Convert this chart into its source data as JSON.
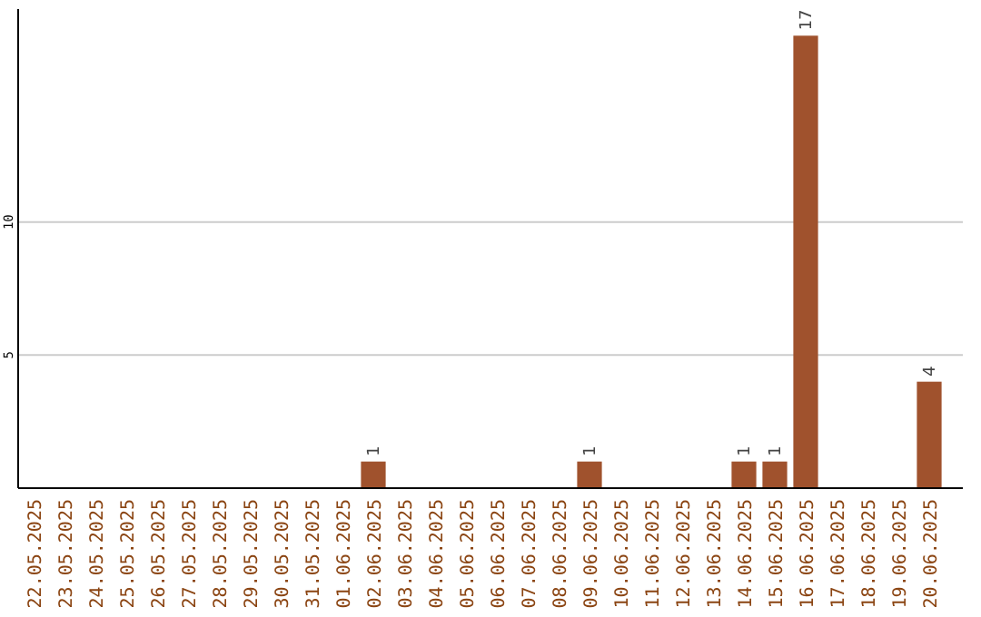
{
  "chart_data": {
    "type": "bar",
    "categories": [
      "22.05.2025",
      "23.05.2025",
      "24.05.2025",
      "25.05.2025",
      "26.05.2025",
      "27.05.2025",
      "28.05.2025",
      "29.05.2025",
      "30.05.2025",
      "31.05.2025",
      "01.06.2025",
      "02.06.2025",
      "03.06.2025",
      "04.06.2025",
      "05.06.2025",
      "06.06.2025",
      "07.06.2025",
      "08.06.2025",
      "09.06.2025",
      "10.06.2025",
      "11.06.2025",
      "12.06.2025",
      "13.06.2025",
      "14.06.2025",
      "15.06.2025",
      "16.06.2025",
      "17.06.2025",
      "18.06.2025",
      "19.06.2025",
      "20.06.2025"
    ],
    "values": [
      0,
      0,
      0,
      0,
      0,
      0,
      0,
      0,
      0,
      0,
      0,
      1,
      0,
      0,
      0,
      0,
      0,
      0,
      1,
      0,
      0,
      0,
      0,
      1,
      1,
      17,
      0,
      0,
      0,
      4
    ],
    "value_labels": [
      null,
      null,
      null,
      null,
      null,
      null,
      null,
      null,
      null,
      null,
      null,
      "1",
      null,
      null,
      null,
      null,
      null,
      null,
      "1",
      null,
      null,
      null,
      null,
      "1",
      "1",
      "17",
      null,
      null,
      null,
      "4"
    ],
    "color": "#a0522d",
    "ylim": [
      0,
      18
    ],
    "yticks": [
      5,
      10
    ],
    "grid": "y"
  }
}
